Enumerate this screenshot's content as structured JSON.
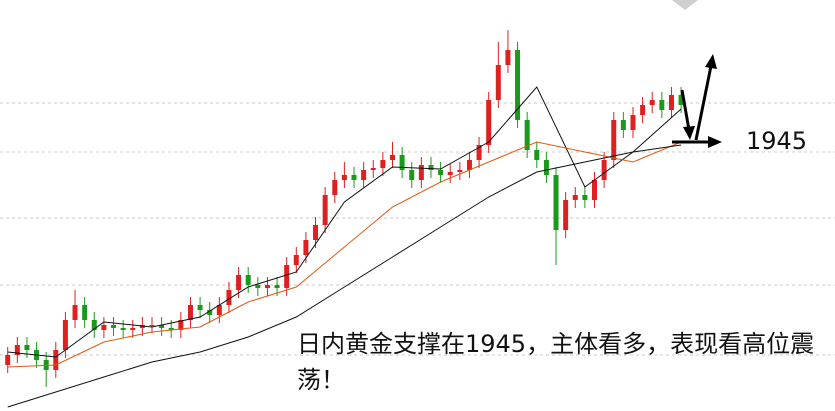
{
  "chart_data": {
    "type": "candlestick",
    "x": [
      0,
      1,
      2,
      3,
      4,
      5,
      6,
      7,
      8,
      9,
      10,
      11,
      12,
      13,
      14,
      15,
      16,
      17,
      18,
      19,
      20,
      21,
      22,
      23,
      24,
      25,
      26,
      27,
      28,
      29,
      30,
      31,
      32,
      33,
      34,
      35,
      36,
      37,
      38,
      39,
      40,
      41,
      42,
      43,
      44,
      45,
      46,
      47,
      48,
      49,
      50,
      51,
      52,
      53,
      54,
      55,
      56,
      57,
      58,
      59,
      60,
      61,
      62,
      63,
      64,
      65,
      66,
      67,
      68,
      69,
      70
    ],
    "open": [
      1722,
      1732,
      1742,
      1737,
      1727,
      1717,
      1737,
      1767,
      1782,
      1767,
      1757,
      1762,
      1759,
      1757,
      1759,
      1762,
      1762,
      1759,
      1757,
      1767,
      1782,
      1777,
      1772,
      1782,
      1797,
      1812,
      1802,
      1799,
      1802,
      1799,
      1822,
      1832,
      1847,
      1862,
      1892,
      1907,
      1912,
      1907,
      1917,
      1919,
      1927,
      1932,
      1917,
      1907,
      1922,
      1917,
      1912,
      1915,
      1917,
      1927,
      1942,
      1987,
      2022,
      2037,
      1967,
      1937,
      1927,
      1912,
      1857,
      1887,
      1892,
      1887,
      1907,
      1927,
      1967,
      1957,
      1972,
      1982,
      1987,
      1977,
      1992
    ],
    "high": [
      1740,
      1750,
      1750,
      1745,
      1735,
      1745,
      1775,
      1797,
      1790,
      1775,
      1770,
      1770,
      1767,
      1767,
      1770,
      1770,
      1770,
      1767,
      1775,
      1790,
      1790,
      1785,
      1790,
      1805,
      1820,
      1820,
      1810,
      1810,
      1810,
      1830,
      1840,
      1855,
      1870,
      1900,
      1915,
      1925,
      1920,
      1925,
      1927,
      1935,
      1945,
      1940,
      1925,
      1930,
      1930,
      1925,
      1923,
      1925,
      1935,
      1950,
      1995,
      2045,
      2057,
      2045,
      1975,
      1945,
      1935,
      1920,
      1895,
      1900,
      1900,
      1915,
      1935,
      1975,
      1975,
      1980,
      1990,
      1995,
      1995,
      2000,
      2000
    ],
    "low": [
      1714,
      1724,
      1729,
      1719,
      1700,
      1709,
      1729,
      1759,
      1759,
      1749,
      1749,
      1751,
      1749,
      1749,
      1751,
      1754,
      1751,
      1749,
      1749,
      1759,
      1769,
      1764,
      1764,
      1774,
      1789,
      1794,
      1791,
      1791,
      1791,
      1791,
      1814,
      1824,
      1839,
      1854,
      1884,
      1899,
      1899,
      1899,
      1909,
      1911,
      1919,
      1909,
      1899,
      1899,
      1909,
      1904,
      1904,
      1907,
      1909,
      1919,
      1934,
      1979,
      2014,
      1959,
      1929,
      1919,
      1904,
      1822,
      1849,
      1879,
      1879,
      1879,
      1899,
      1919,
      1949,
      1949,
      1964,
      1974,
      1969,
      1969,
      1974
    ],
    "close": [
      1732,
      1742,
      1737,
      1727,
      1717,
      1737,
      1767,
      1782,
      1767,
      1757,
      1762,
      1759,
      1757,
      1759,
      1762,
      1762,
      1759,
      1757,
      1767,
      1782,
      1777,
      1772,
      1782,
      1797,
      1812,
      1802,
      1799,
      1802,
      1799,
      1822,
      1832,
      1847,
      1862,
      1892,
      1907,
      1912,
      1907,
      1917,
      1919,
      1927,
      1932,
      1917,
      1907,
      1922,
      1917,
      1912,
      1915,
      1917,
      1927,
      1942,
      1987,
      2022,
      2037,
      1967,
      1937,
      1927,
      1912,
      1857,
      1887,
      1892,
      1887,
      1907,
      1927,
      1967,
      1957,
      1972,
      1982,
      1987,
      1977,
      1992,
      1982
    ],
    "up_color": "#e02020",
    "down_color": "#1a9a1a",
    "lines": [
      {
        "color": "#111111",
        "x": [
          0,
          5,
          10,
          15,
          20,
          25,
          30,
          35,
          40,
          45,
          50,
          55,
          60,
          65,
          70
        ],
        "values": [
          1735,
          1730,
          1765,
          1760,
          1770,
          1800,
          1815,
          1885,
          1920,
          1918,
          1945,
          2000,
          1900,
          1935,
          1978
        ]
      },
      {
        "color": "#e05a10",
        "x": [
          0,
          5,
          10,
          15,
          20,
          25,
          30,
          35,
          40,
          45,
          50,
          55,
          60,
          65,
          70
        ],
        "values": [
          1720,
          1722,
          1745,
          1755,
          1760,
          1785,
          1800,
          1840,
          1880,
          1905,
          1925,
          1945,
          1935,
          1925,
          1945
        ]
      },
      {
        "color": "#111111",
        "x": [
          0,
          5,
          10,
          15,
          20,
          25,
          30,
          35,
          40,
          45,
          50,
          55,
          60,
          65,
          70
        ],
        "values": [
          1680,
          1695,
          1710,
          1725,
          1735,
          1750,
          1770,
          1800,
          1830,
          1860,
          1890,
          1915,
          1925,
          1935,
          1942
        ]
      }
    ],
    "xlim": [
      -0.8,
      86
    ],
    "ylim": [
      1676,
      2087
    ],
    "grid_lines": [
      1984,
      1935,
      1869,
      1802,
      1732
    ],
    "support_level": 1945,
    "annotation": "日内黄金支撑在1945，主体看多，表现看高位震荡！"
  }
}
